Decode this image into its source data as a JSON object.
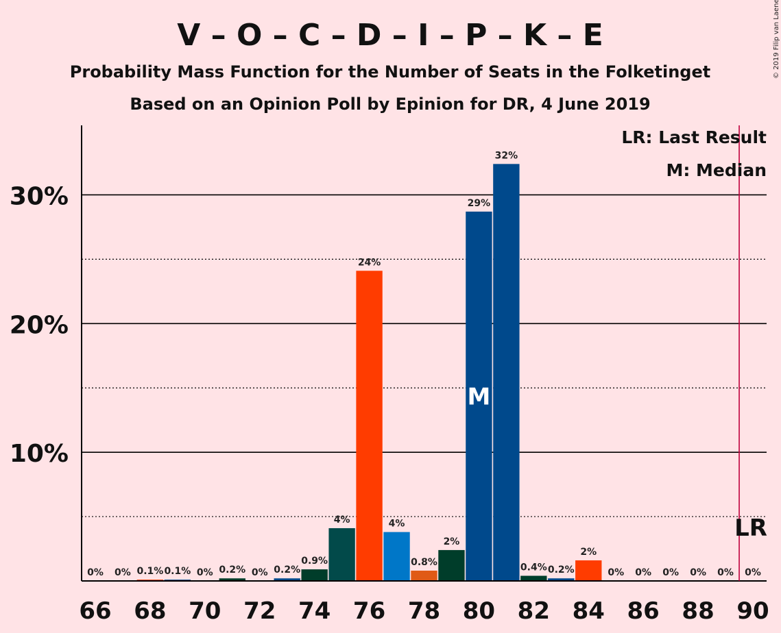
{
  "chart_data": {
    "type": "bar",
    "title": "V – O – C – D – I – P – K – E",
    "subtitle1": "Probability Mass Function for the Number of Seats in the Folketinget",
    "subtitle2": "Based on an Opinion Poll by Epinion for DR, 4 June 2019",
    "copyright": "© 2019 Filip van Laenen",
    "x": [
      66,
      67,
      68,
      69,
      70,
      71,
      72,
      73,
      74,
      75,
      76,
      77,
      78,
      79,
      80,
      81,
      82,
      83,
      84,
      85,
      86,
      87,
      88,
      89,
      90
    ],
    "values": [
      0,
      0,
      0.1,
      0.1,
      0,
      0.2,
      0,
      0.2,
      0.9,
      4.1,
      24.1,
      3.8,
      0.8,
      2.4,
      28.7,
      32.4,
      0.4,
      0.2,
      1.6,
      0,
      0,
      0,
      0,
      0,
      0
    ],
    "value_labels": [
      "0%",
      "0%",
      "0.1%",
      "0.1%",
      "0%",
      "0.2%",
      "0%",
      "0.2%",
      "0.9%",
      "4%",
      "24%",
      "4%",
      "0.8%",
      "2%",
      "29%",
      "32%",
      "0.4%",
      "0.2%",
      "2%",
      "0%",
      "0%",
      "0%",
      "0%",
      "0%",
      "0%"
    ],
    "bar_colors": [
      "#003d2a",
      "#ff3c00",
      "#ff3c00",
      "#00498c",
      "#00498c",
      "#003d2a",
      "#003d2a",
      "#00498c",
      "#003d2a",
      "#024a4a",
      "#ff3c00",
      "#0077c8",
      "#e05a16",
      "#003d2a",
      "#00498c",
      "#00498c",
      "#003d2a",
      "#00498c",
      "#ff3c00",
      "#003d2a",
      "#003d2a",
      "#003d2a",
      "#003d2a",
      "#003d2a",
      "#003d2a"
    ],
    "x_tick_labels": [
      "66",
      "68",
      "70",
      "72",
      "74",
      "76",
      "78",
      "80",
      "82",
      "84",
      "86",
      "88",
      "90"
    ],
    "y_ticks": [
      {
        "value": 5,
        "label": "",
        "style": "dotted"
      },
      {
        "value": 10,
        "label": "10%",
        "style": "solid"
      },
      {
        "value": 15,
        "label": "",
        "style": "dotted"
      },
      {
        "value": 20,
        "label": "20%",
        "style": "solid"
      },
      {
        "value": 25,
        "label": "",
        "style": "dotted"
      },
      {
        "value": 30,
        "label": "30%",
        "style": "solid"
      }
    ],
    "ylim": [
      0,
      35.4
    ],
    "xlim": [
      65.5,
      90.5
    ],
    "median": {
      "x": 80,
      "label": "M"
    },
    "last_result": {
      "x": 89.5,
      "label": "LR",
      "color": "#c0003c"
    },
    "legend": [
      "LR: Last Result",
      "M: Median"
    ],
    "legend_position": "top-right"
  }
}
